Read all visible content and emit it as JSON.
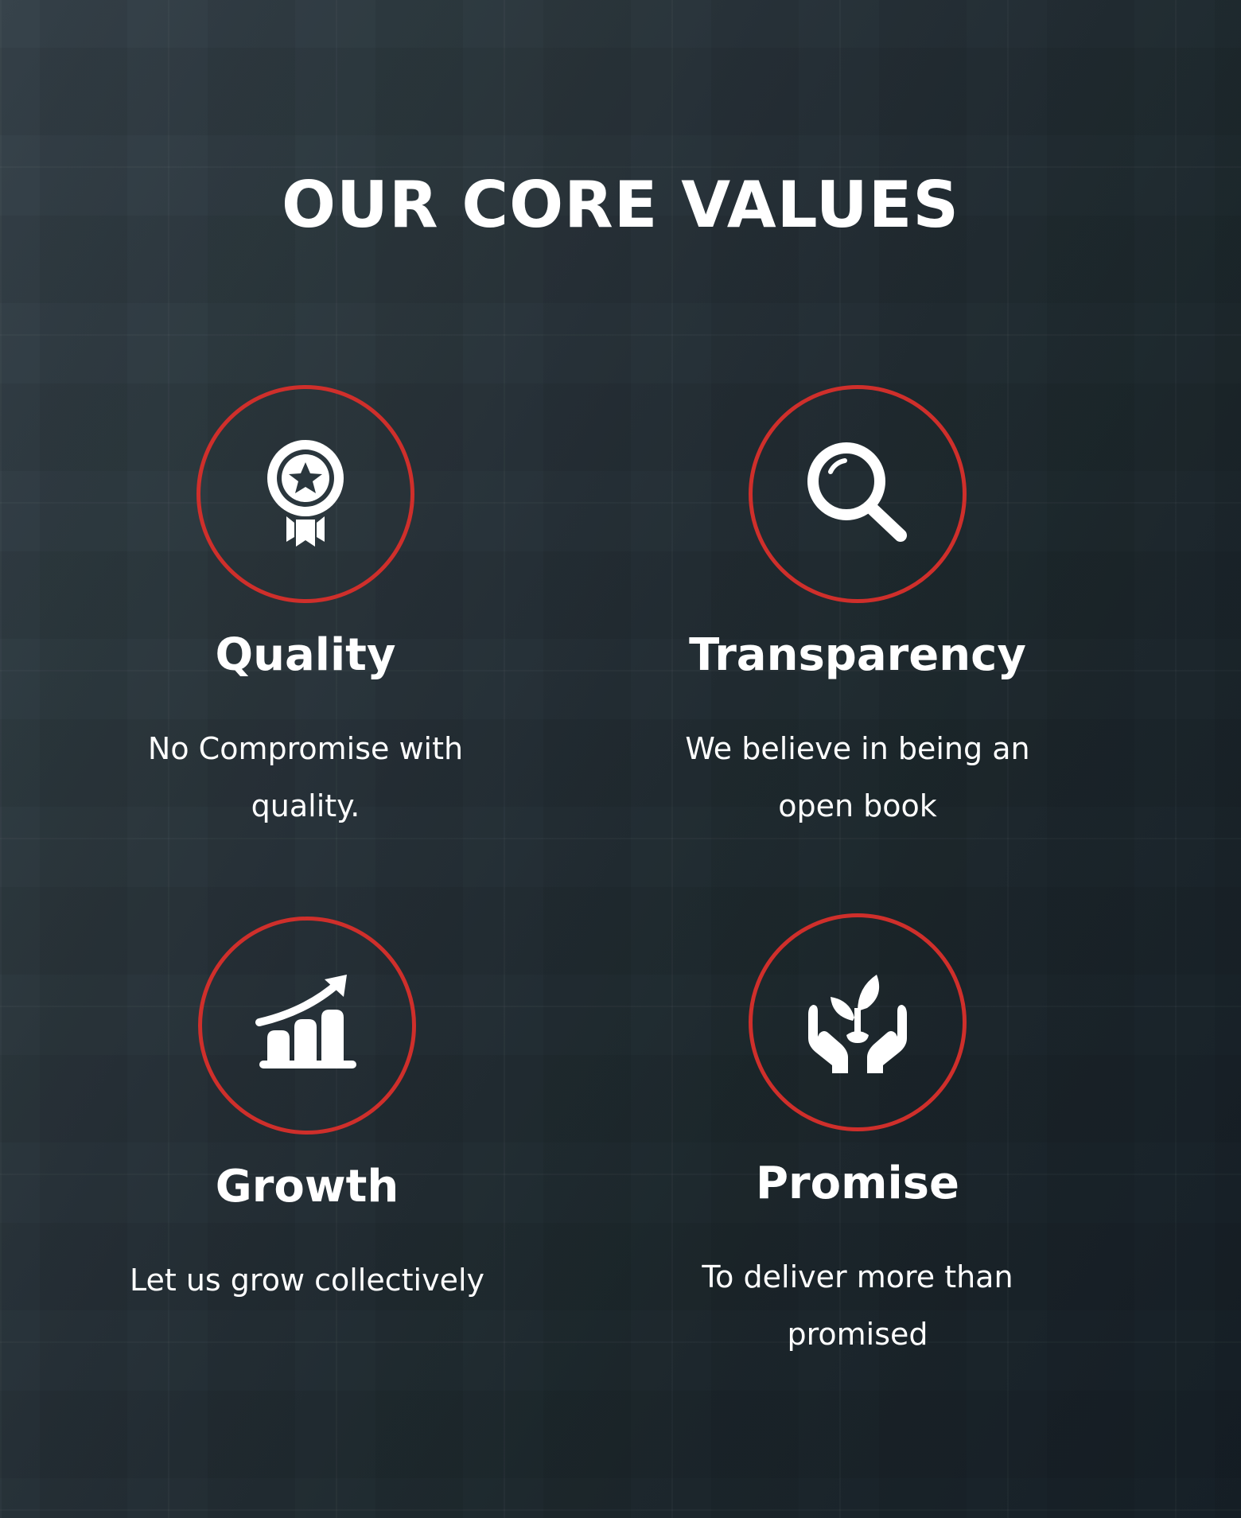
{
  "heading": "OUR CORE VALUES",
  "accent_color": "#cf2f2b",
  "values": [
    {
      "icon": "award-ribbon-icon",
      "title": "Quality",
      "description": "No Compromise with quality."
    },
    {
      "icon": "magnifying-glass-icon",
      "title": "Transparency",
      "description": "We believe in being an open book"
    },
    {
      "icon": "growth-chart-icon",
      "title": "Growth",
      "description": "Let us grow collectively"
    },
    {
      "icon": "hands-plant-icon",
      "title": "Promise",
      "description": "To deliver more than promised"
    }
  ]
}
